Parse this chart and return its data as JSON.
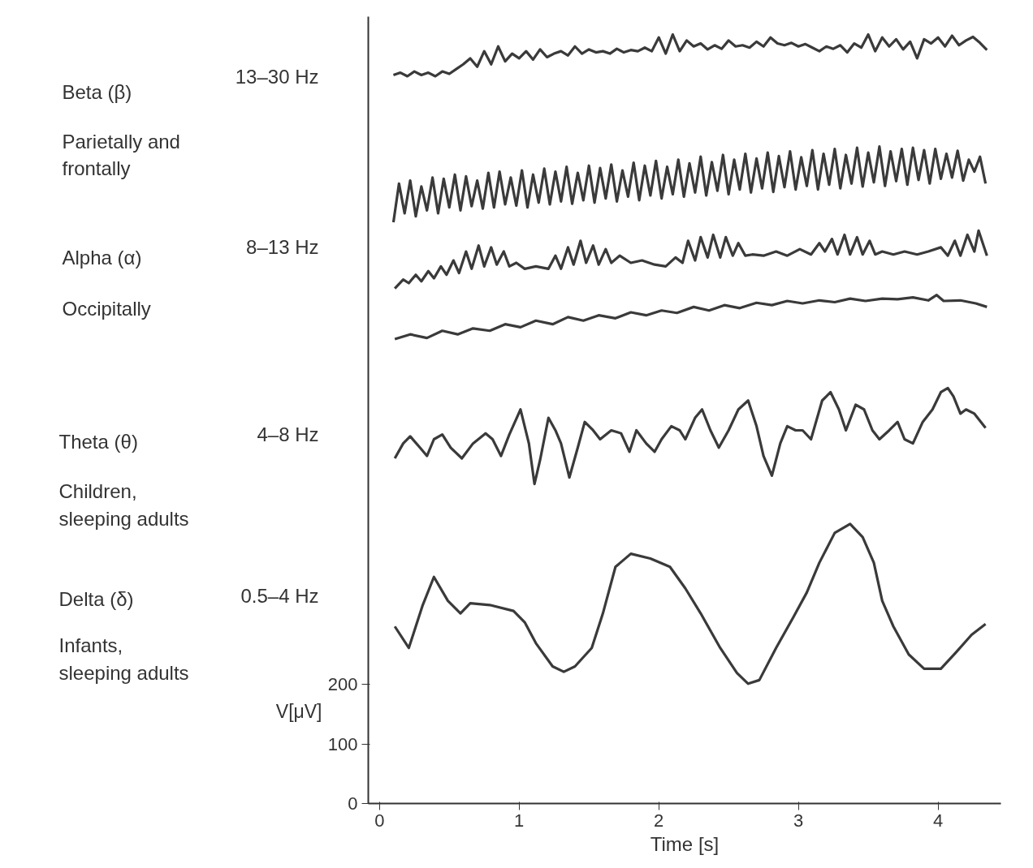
{
  "chart_data": {
    "type": "line",
    "xlabel": "Time [s]",
    "ylabel": "V[μV]",
    "xlim": [
      -0.08,
      4.45
    ],
    "ylim": [
      0,
      1320
    ],
    "xticks": [
      0,
      1,
      2,
      3,
      4
    ],
    "yticks": [
      0,
      100,
      200
    ],
    "annotations": [
      "Beta (β)",
      "13–30 Hz",
      "Parietally and\nfrontally",
      "8–13 Hz",
      "Alpha (α)",
      "Occipitally",
      "Theta (θ)",
      "4–8 Hz",
      "Children,\nsleeping adults",
      "Delta (δ)",
      "0.5–4 Hz",
      "Infants,\nsleeping adults"
    ],
    "series": [
      {
        "color": "#3a3a3a",
        "x": [
          0.1,
          0.15,
          0.2,
          0.25,
          0.3,
          0.35,
          0.4,
          0.45,
          0.5,
          0.55,
          0.6,
          0.65,
          0.7,
          0.75,
          0.8,
          0.85,
          0.9,
          0.95,
          1.0,
          1.05,
          1.1,
          1.15,
          1.2,
          1.25,
          1.3,
          1.35,
          1.4,
          1.45,
          1.5,
          1.55,
          1.6,
          1.65,
          1.7,
          1.75,
          1.8,
          1.85,
          1.9,
          1.95,
          2.0,
          2.05,
          2.1,
          2.15,
          2.2,
          2.25,
          2.3,
          2.35,
          2.4,
          2.45,
          2.5,
          2.55,
          2.6,
          2.65,
          2.7,
          2.75,
          2.8,
          2.85,
          2.9,
          2.95,
          3.0,
          3.05,
          3.1,
          3.15,
          3.2,
          3.25,
          3.3,
          3.35,
          3.4,
          3.45,
          3.5,
          3.55,
          3.6,
          3.65,
          3.7,
          3.75,
          3.8,
          3.85,
          3.9,
          3.95,
          4.0,
          4.05,
          4.1,
          4.15,
          4.2,
          4.25,
          4.3,
          4.35
        ],
        "values": [
          1222,
          1226,
          1220,
          1228,
          1222,
          1226,
          1220,
          1228,
          1224,
          1232,
          1240,
          1250,
          1236,
          1262,
          1240,
          1270,
          1245,
          1258,
          1250,
          1262,
          1248,
          1265,
          1252,
          1258,
          1262,
          1255,
          1270,
          1258,
          1265,
          1260,
          1262,
          1258,
          1266,
          1260,
          1264,
          1262,
          1268,
          1262,
          1285,
          1258,
          1290,
          1262,
          1280,
          1270,
          1275,
          1265,
          1272,
          1266,
          1280,
          1270,
          1272,
          1268,
          1278,
          1270,
          1285,
          1275,
          1272,
          1276,
          1270,
          1274,
          1268,
          1262,
          1270,
          1266,
          1272,
          1260,
          1275,
          1268,
          1290,
          1262,
          1285,
          1270,
          1282,
          1265,
          1278,
          1250,
          1282,
          1275,
          1285,
          1270,
          1288,
          1272,
          1280,
          1286,
          1276,
          1264
        ]
      },
      {
        "color": "#3a3a3a",
        "x": [
          0.1,
          0.14,
          0.18,
          0.22,
          0.26,
          0.3,
          0.34,
          0.38,
          0.42,
          0.46,
          0.5,
          0.54,
          0.58,
          0.62,
          0.66,
          0.7,
          0.74,
          0.78,
          0.82,
          0.86,
          0.9,
          0.94,
          0.98,
          1.02,
          1.06,
          1.1,
          1.14,
          1.18,
          1.22,
          1.26,
          1.3,
          1.34,
          1.38,
          1.42,
          1.46,
          1.5,
          1.54,
          1.58,
          1.62,
          1.66,
          1.7,
          1.74,
          1.78,
          1.82,
          1.86,
          1.9,
          1.94,
          1.98,
          2.02,
          2.06,
          2.1,
          2.14,
          2.18,
          2.22,
          2.26,
          2.3,
          2.34,
          2.38,
          2.42,
          2.46,
          2.5,
          2.54,
          2.58,
          2.62,
          2.66,
          2.7,
          2.74,
          2.78,
          2.82,
          2.86,
          2.9,
          2.94,
          2.98,
          3.02,
          3.06,
          3.1,
          3.14,
          3.18,
          3.22,
          3.26,
          3.3,
          3.34,
          3.38,
          3.42,
          3.46,
          3.5,
          3.54,
          3.58,
          3.62,
          3.66,
          3.7,
          3.74,
          3.78,
          3.82,
          3.86,
          3.9,
          3.94,
          3.98,
          4.02,
          4.06,
          4.1,
          4.14,
          4.18,
          4.22,
          4.26,
          4.3,
          4.34
        ],
        "values": [
          975,
          1040,
          990,
          1045,
          985,
          1035,
          995,
          1050,
          990,
          1048,
          1000,
          1055,
          995,
          1052,
          1002,
          1045,
          998,
          1058,
          1000,
          1060,
          1005,
          1050,
          1003,
          1062,
          1000,
          1055,
          1008,
          1065,
          1005,
          1060,
          1010,
          1068,
          1006,
          1058,
          1012,
          1070,
          1008,
          1066,
          1015,
          1072,
          1010,
          1062,
          1018,
          1075,
          1012,
          1070,
          1020,
          1078,
          1015,
          1068,
          1022,
          1080,
          1018,
          1074,
          1025,
          1085,
          1020,
          1076,
          1028,
          1088,
          1022,
          1080,
          1030,
          1090,
          1025,
          1082,
          1032,
          1092,
          1026,
          1086,
          1034,
          1094,
          1030,
          1084,
          1036,
          1096,
          1030,
          1090,
          1038,
          1098,
          1032,
          1088,
          1040,
          1100,
          1035,
          1092,
          1042,
          1102,
          1036,
          1094,
          1044,
          1098,
          1038,
          1100,
          1046,
          1096,
          1040,
          1098,
          1048,
          1090,
          1050,
          1095,
          1045,
          1080,
          1060,
          1085,
          1040
        ]
      },
      {
        "color": "#3a3a3a",
        "x": [
          0.11,
          0.17,
          0.21,
          0.26,
          0.3,
          0.35,
          0.39,
          0.44,
          0.48,
          0.53,
          0.57,
          0.62,
          0.66,
          0.71,
          0.75,
          0.8,
          0.84,
          0.89,
          0.93,
          0.98,
          1.04,
          1.12,
          1.21,
          1.26,
          1.3,
          1.35,
          1.39,
          1.44,
          1.48,
          1.53,
          1.57,
          1.62,
          1.66,
          1.72,
          1.8,
          1.88,
          1.97,
          2.05,
          2.12,
          2.17,
          2.21,
          2.26,
          2.3,
          2.35,
          2.39,
          2.44,
          2.48,
          2.53,
          2.57,
          2.62,
          2.67,
          2.75,
          2.84,
          2.92,
          3.01,
          3.09,
          3.15,
          3.19,
          3.24,
          3.28,
          3.33,
          3.37,
          3.42,
          3.46,
          3.51,
          3.55,
          3.6,
          3.68,
          3.76,
          3.85,
          3.93,
          4.02,
          4.07,
          4.12,
          4.16,
          4.21,
          4.26,
          4.29,
          4.33,
          4.35
        ],
        "values": [
          864,
          879,
          873,
          887,
          876,
          893,
          881,
          901,
          887,
          911,
          890,
          926,
          897,
          936,
          901,
          933,
          904,
          926,
          901,
          907,
          897,
          901,
          897,
          919,
          897,
          933,
          904,
          944,
          907,
          936,
          904,
          930,
          907,
          919,
          907,
          911,
          904,
          901,
          916,
          907,
          944,
          911,
          950,
          916,
          954,
          916,
          950,
          919,
          940,
          919,
          921,
          919,
          926,
          919,
          930,
          921,
          940,
          926,
          947,
          921,
          954,
          921,
          950,
          921,
          944,
          921,
          926,
          921,
          926,
          921,
          926,
          933,
          919,
          944,
          919,
          954,
          926,
          961,
          933,
          919
        ]
      },
      {
        "color": "#3a3a3a",
        "x": [
          0.11,
          0.22,
          0.34,
          0.45,
          0.56,
          0.67,
          0.79,
          0.9,
          1.01,
          1.12,
          1.24,
          1.35,
          1.46,
          1.57,
          1.69,
          1.8,
          1.91,
          2.02,
          2.13,
          2.25,
          2.36,
          2.47,
          2.58,
          2.7,
          2.81,
          2.92,
          3.03,
          3.15,
          3.26,
          3.37,
          3.48,
          3.6,
          3.71,
          3.82,
          3.93,
          3.99,
          4.04,
          4.16,
          4.27,
          4.35
        ],
        "values": [
          779,
          787,
          781,
          793,
          787,
          797,
          793,
          804,
          799,
          810,
          804,
          816,
          810,
          819,
          814,
          824,
          819,
          827,
          823,
          833,
          827,
          836,
          831,
          840,
          836,
          843,
          839,
          844,
          841,
          847,
          843,
          847,
          846,
          849,
          844,
          853,
          843,
          844,
          839,
          833
        ]
      },
      {
        "color": "#3a3a3a",
        "x": [
          0.11,
          0.17,
          0.22,
          0.29,
          0.34,
          0.39,
          0.45,
          0.51,
          0.59,
          0.67,
          0.76,
          0.81,
          0.87,
          0.93,
          1.01,
          1.07,
          1.11,
          1.15,
          1.21,
          1.26,
          1.3,
          1.36,
          1.42,
          1.47,
          1.53,
          1.58,
          1.66,
          1.73,
          1.79,
          1.84,
          1.91,
          1.97,
          2.02,
          2.09,
          2.15,
          2.19,
          2.26,
          2.31,
          2.37,
          2.43,
          2.5,
          2.57,
          2.64,
          2.7,
          2.75,
          2.81,
          2.87,
          2.92,
          2.98,
          3.03,
          3.09,
          3.17,
          3.23,
          3.29,
          3.34,
          3.41,
          3.47,
          3.53,
          3.58,
          3.65,
          3.71,
          3.76,
          3.82,
          3.89,
          3.96,
          4.02,
          4.07,
          4.11,
          4.16,
          4.2,
          4.26,
          4.34
        ],
        "values": [
          579,
          604,
          616,
          597,
          583,
          611,
          619,
          597,
          579,
          604,
          621,
          611,
          583,
          619,
          661,
          604,
          536,
          576,
          647,
          626,
          604,
          547,
          597,
          640,
          626,
          611,
          626,
          621,
          590,
          626,
          604,
          590,
          611,
          633,
          626,
          611,
          647,
          661,
          626,
          597,
          626,
          661,
          676,
          633,
          583,
          550,
          604,
          633,
          626,
          626,
          611,
          676,
          690,
          661,
          626,
          669,
          661,
          626,
          611,
          626,
          640,
          611,
          604,
          640,
          661,
          690,
          697,
          683,
          654,
          661,
          654,
          630
        ]
      },
      {
        "color": "#3a3a3a",
        "x": [
          0.11,
          0.21,
          0.31,
          0.39,
          0.49,
          0.58,
          0.65,
          0.79,
          0.96,
          1.04,
          1.12,
          1.24,
          1.32,
          1.4,
          1.52,
          1.6,
          1.69,
          1.8,
          1.94,
          2.08,
          2.19,
          2.3,
          2.44,
          2.56,
          2.64,
          2.72,
          2.84,
          2.96,
          3.06,
          3.15,
          3.26,
          3.37,
          3.46,
          3.54,
          3.6,
          3.68,
          3.79,
          3.9,
          4.02,
          4.13,
          4.24,
          4.34
        ],
        "values": [
          297,
          261,
          333,
          380,
          340,
          319,
          336,
          333,
          323,
          304,
          269,
          230,
          221,
          230,
          261,
          319,
          397,
          419,
          411,
          397,
          361,
          319,
          261,
          219,
          201,
          207,
          261,
          311,
          354,
          404,
          454,
          469,
          447,
          404,
          340,
          297,
          250,
          226,
          226,
          254,
          283,
          301
        ]
      }
    ]
  }
}
